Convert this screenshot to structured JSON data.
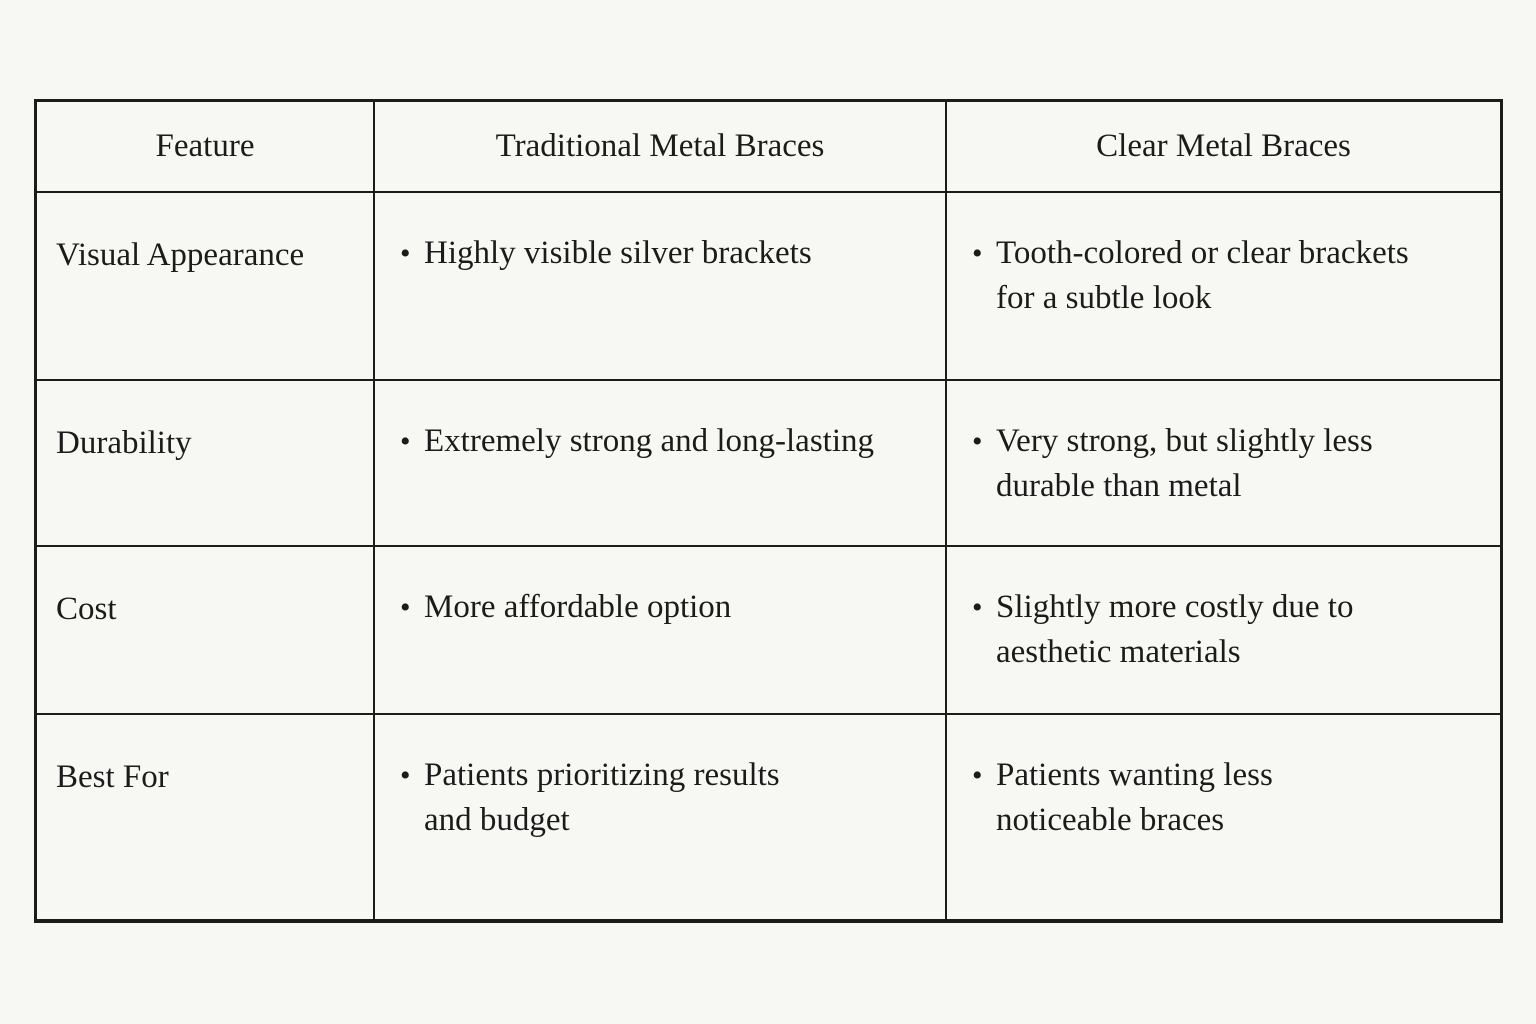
{
  "ui": {
    "bullet": "•"
  },
  "colors": {
    "background": "#f7f7f4",
    "line": "#1c1c1c",
    "text": "#1b1b1b"
  },
  "table": {
    "columns": [
      "Feature",
      "Traditional Metal Braces",
      "Clear Metal Braces"
    ],
    "rows": [
      {
        "feature": "Visual Appearance",
        "traditional": "Highly visible silver brackets",
        "clear": "Tooth-colored or clear brackets\nfor a subtle look"
      },
      {
        "feature": "Durability",
        "traditional": "Extremely strong and long-lasting",
        "clear": "Very strong, but slightly less\ndurable than metal"
      },
      {
        "feature": "Cost",
        "traditional": "More affordable option",
        "clear": "Slightly more costly due to\naesthetic materials"
      },
      {
        "feature": "Best For",
        "traditional": "Patients prioritizing results\nand budget",
        "clear": "Patients wanting less\nnoticeable braces"
      }
    ]
  }
}
